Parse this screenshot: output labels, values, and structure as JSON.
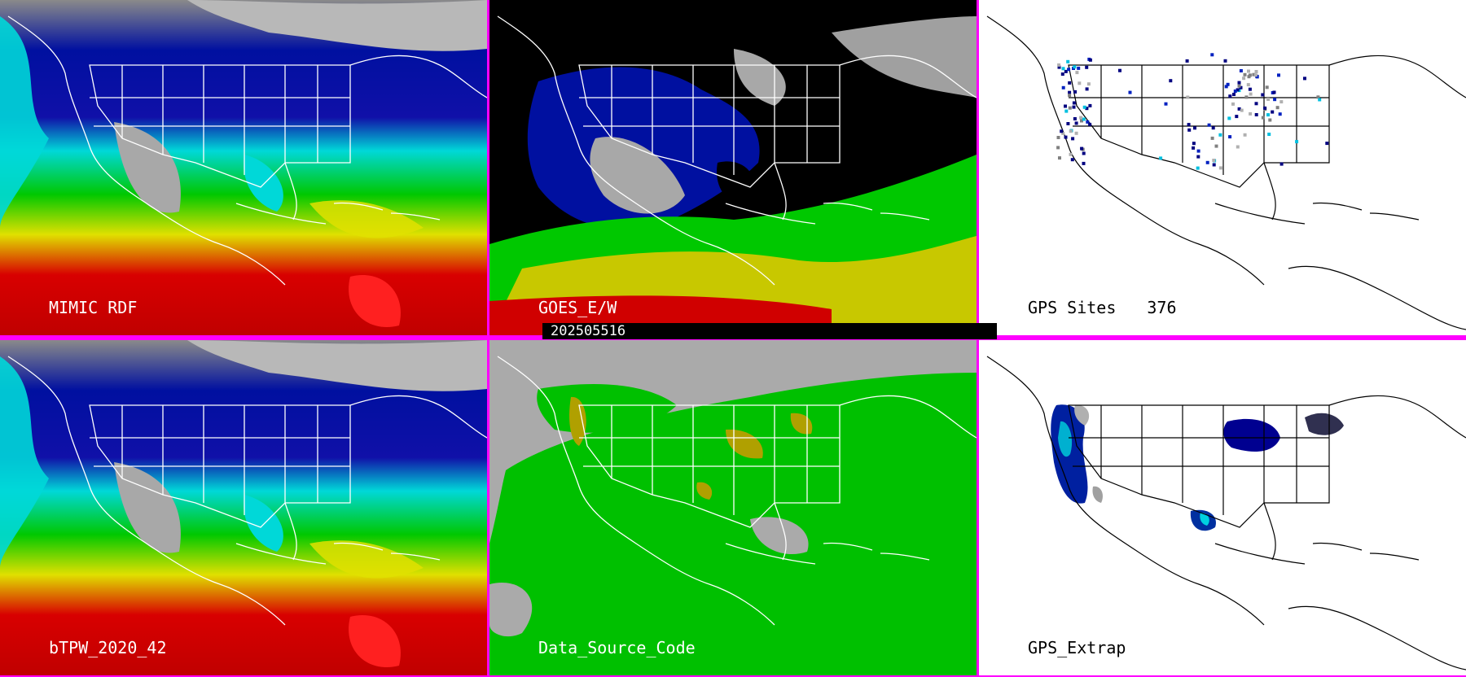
{
  "panels": [
    {
      "label": "MIMIC RDF",
      "style": "tpw"
    },
    {
      "label": "GOES_E/W",
      "style": "goes"
    },
    {
      "label": "GPS Sites",
      "count": "376",
      "style": "gps"
    },
    {
      "label": "bTPW_2020_42",
      "style": "tpw"
    },
    {
      "label": "Data_Source_Code",
      "style": "dsc"
    },
    {
      "label": "GPS_Extrap",
      "style": "extrap"
    }
  ],
  "timestamp": "202505516",
  "colors": {
    "divider": "#ff00ff",
    "moist_red": "#d40000",
    "yellow": "#e8e800",
    "olive": "#b0a000",
    "green": "#00cc00",
    "cyan": "#00e0e0",
    "blue": "#0020c0",
    "navy": "#000080",
    "gray": "#a8a8a8",
    "white": "#ffffff",
    "black": "#000000"
  }
}
